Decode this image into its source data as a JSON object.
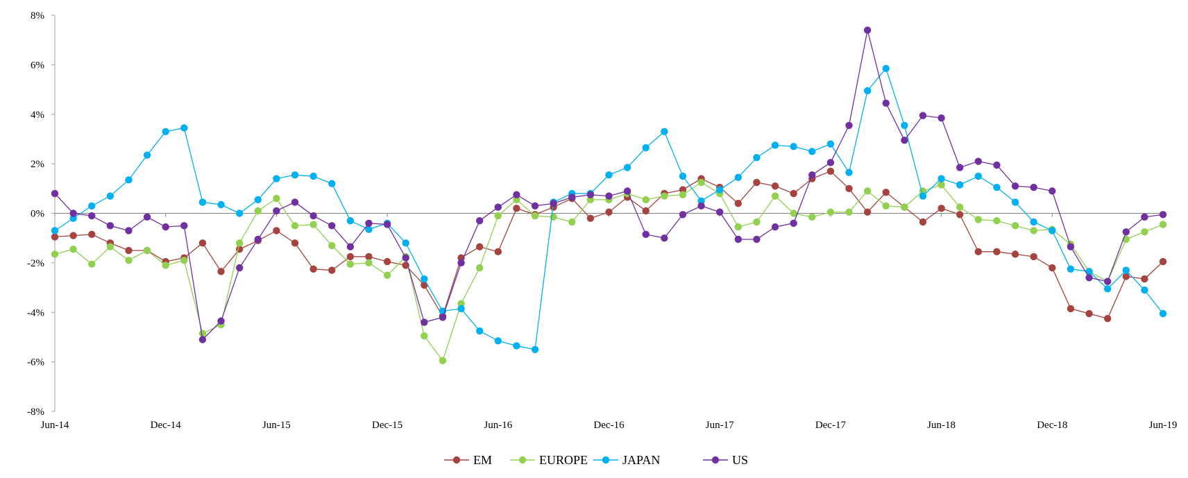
{
  "chart_data": {
    "type": "line",
    "x": [
      "Jun-14",
      "Jul-14",
      "Aug-14",
      "Sep-14",
      "Oct-14",
      "Nov-14",
      "Dec-14",
      "Jan-15",
      "Feb-15",
      "Mar-15",
      "Apr-15",
      "May-15",
      "Jun-15",
      "Jul-15",
      "Aug-15",
      "Sep-15",
      "Oct-15",
      "Nov-15",
      "Dec-15",
      "Jan-16",
      "Feb-16",
      "Mar-16",
      "Apr-16",
      "May-16",
      "Jun-16",
      "Jul-16",
      "Aug-16",
      "Sep-16",
      "Oct-16",
      "Nov-16",
      "Dec-16",
      "Jan-17",
      "Feb-17",
      "Mar-17",
      "Apr-17",
      "May-17",
      "Jun-17",
      "Jul-17",
      "Aug-17",
      "Sep-17",
      "Oct-17",
      "Nov-17",
      "Dec-17",
      "Jan-18",
      "Feb-18",
      "Mar-18",
      "Apr-18",
      "May-18",
      "Jun-18",
      "Jul-18",
      "Aug-18",
      "Sep-18",
      "Oct-18",
      "Nov-18",
      "Dec-18",
      "Jan-19",
      "Feb-19",
      "Mar-19",
      "Apr-19",
      "May-19",
      "Jun-19"
    ],
    "x_tick_labels": [
      "Jun-14",
      "Dec-14",
      "Jun-15",
      "Dec-15",
      "Jun-16",
      "Dec-16",
      "Jun-17",
      "Dec-17",
      "Jun-18",
      "Dec-18",
      "Jun-19"
    ],
    "y_tick_labels": [
      "8%",
      "6%",
      "4%",
      "2%",
      "0%",
      "-2%",
      "-4%",
      "-6%",
      "-8%"
    ],
    "ylim": [
      -8,
      8
    ],
    "y_step": 2,
    "legend_position": "bottom",
    "series": [
      {
        "name": "EM",
        "color": "#a5443f",
        "values": [
          -0.95,
          -0.9,
          -0.85,
          -1.2,
          -1.5,
          -1.5,
          -1.95,
          -1.8,
          -1.2,
          -2.35,
          -1.45,
          -1.1,
          -0.7,
          -1.2,
          -2.25,
          -2.3,
          -1.75,
          -1.75,
          -1.95,
          -2.1,
          -2.9,
          -4.15,
          -1.8,
          -1.35,
          -1.55,
          0.2,
          -0.05,
          0.25,
          0.6,
          -0.2,
          0.05,
          0.65,
          0.1,
          0.8,
          0.95,
          1.4,
          1.05,
          0.4,
          1.25,
          1.1,
          0.8,
          1.4,
          1.7,
          1.0,
          0.05,
          0.85,
          0.25,
          -0.35,
          0.2,
          -0.05,
          -1.55,
          -1.55,
          -1.65,
          -1.75,
          -2.2,
          -3.85,
          -4.05,
          -4.25,
          -2.55,
          -2.65,
          -1.95
        ]
      },
      {
        "name": "EUROPE",
        "color": "#92d050",
        "values": [
          -1.65,
          -1.45,
          -2.05,
          -1.35,
          -1.9,
          -1.5,
          -2.1,
          -1.9,
          -4.85,
          -4.5,
          -1.2,
          0.1,
          0.6,
          -0.5,
          -0.45,
          -1.3,
          -2.05,
          -2.0,
          -2.5,
          -1.75,
          -4.95,
          -5.95,
          -3.65,
          -2.2,
          -0.1,
          0.55,
          -0.1,
          -0.15,
          -0.35,
          0.55,
          0.55,
          0.8,
          0.55,
          0.7,
          0.75,
          1.25,
          0.8,
          -0.55,
          -0.35,
          0.7,
          0.0,
          -0.15,
          0.05,
          0.05,
          0.9,
          0.3,
          0.25,
          0.9,
          1.15,
          0.25,
          -0.25,
          -0.3,
          -0.5,
          -0.7,
          -0.65,
          -1.25,
          -2.35,
          -2.75,
          -1.05,
          -0.75,
          -0.45
        ]
      },
      {
        "name": "JAPAN",
        "color": "#00b0f0",
        "values": [
          -0.7,
          -0.2,
          0.3,
          0.7,
          1.35,
          2.35,
          3.3,
          3.45,
          0.45,
          0.35,
          0.0,
          0.55,
          1.4,
          1.55,
          1.5,
          1.2,
          -0.3,
          -0.65,
          -0.4,
          -1.2,
          -2.65,
          -3.95,
          -3.85,
          -4.75,
          -5.15,
          -5.35,
          -5.5,
          0.45,
          0.8,
          0.8,
          1.55,
          1.85,
          2.65,
          3.3,
          1.5,
          0.5,
          0.95,
          1.45,
          2.25,
          2.75,
          2.7,
          2.5,
          2.8,
          1.65,
          4.95,
          5.85,
          3.55,
          0.7,
          1.4,
          1.15,
          1.5,
          1.05,
          0.45,
          -0.35,
          -0.7,
          -2.25,
          -2.35,
          -3.05,
          -2.3,
          -3.1,
          -4.05
        ]
      },
      {
        "name": "US",
        "color": "#7030a0",
        "values": [
          0.8,
          0.0,
          -0.1,
          -0.5,
          -0.7,
          -0.15,
          -0.55,
          -0.5,
          -5.1,
          -4.35,
          -2.2,
          -1.05,
          0.1,
          0.45,
          -0.1,
          -0.5,
          -1.35,
          -0.4,
          -0.45,
          -1.8,
          -4.4,
          -4.2,
          -2.0,
          -0.3,
          0.25,
          0.75,
          0.3,
          0.4,
          0.65,
          0.75,
          0.7,
          0.9,
          -0.85,
          -1.0,
          -0.05,
          0.3,
          0.05,
          -1.05,
          -1.05,
          -0.55,
          -0.4,
          1.55,
          2.05,
          3.55,
          7.4,
          4.45,
          2.95,
          3.95,
          3.85,
          1.85,
          2.1,
          1.95,
          1.1,
          1.05,
          0.9,
          -1.35,
          -2.6,
          -2.75,
          -0.75,
          -0.15,
          -0.05
        ]
      }
    ]
  }
}
